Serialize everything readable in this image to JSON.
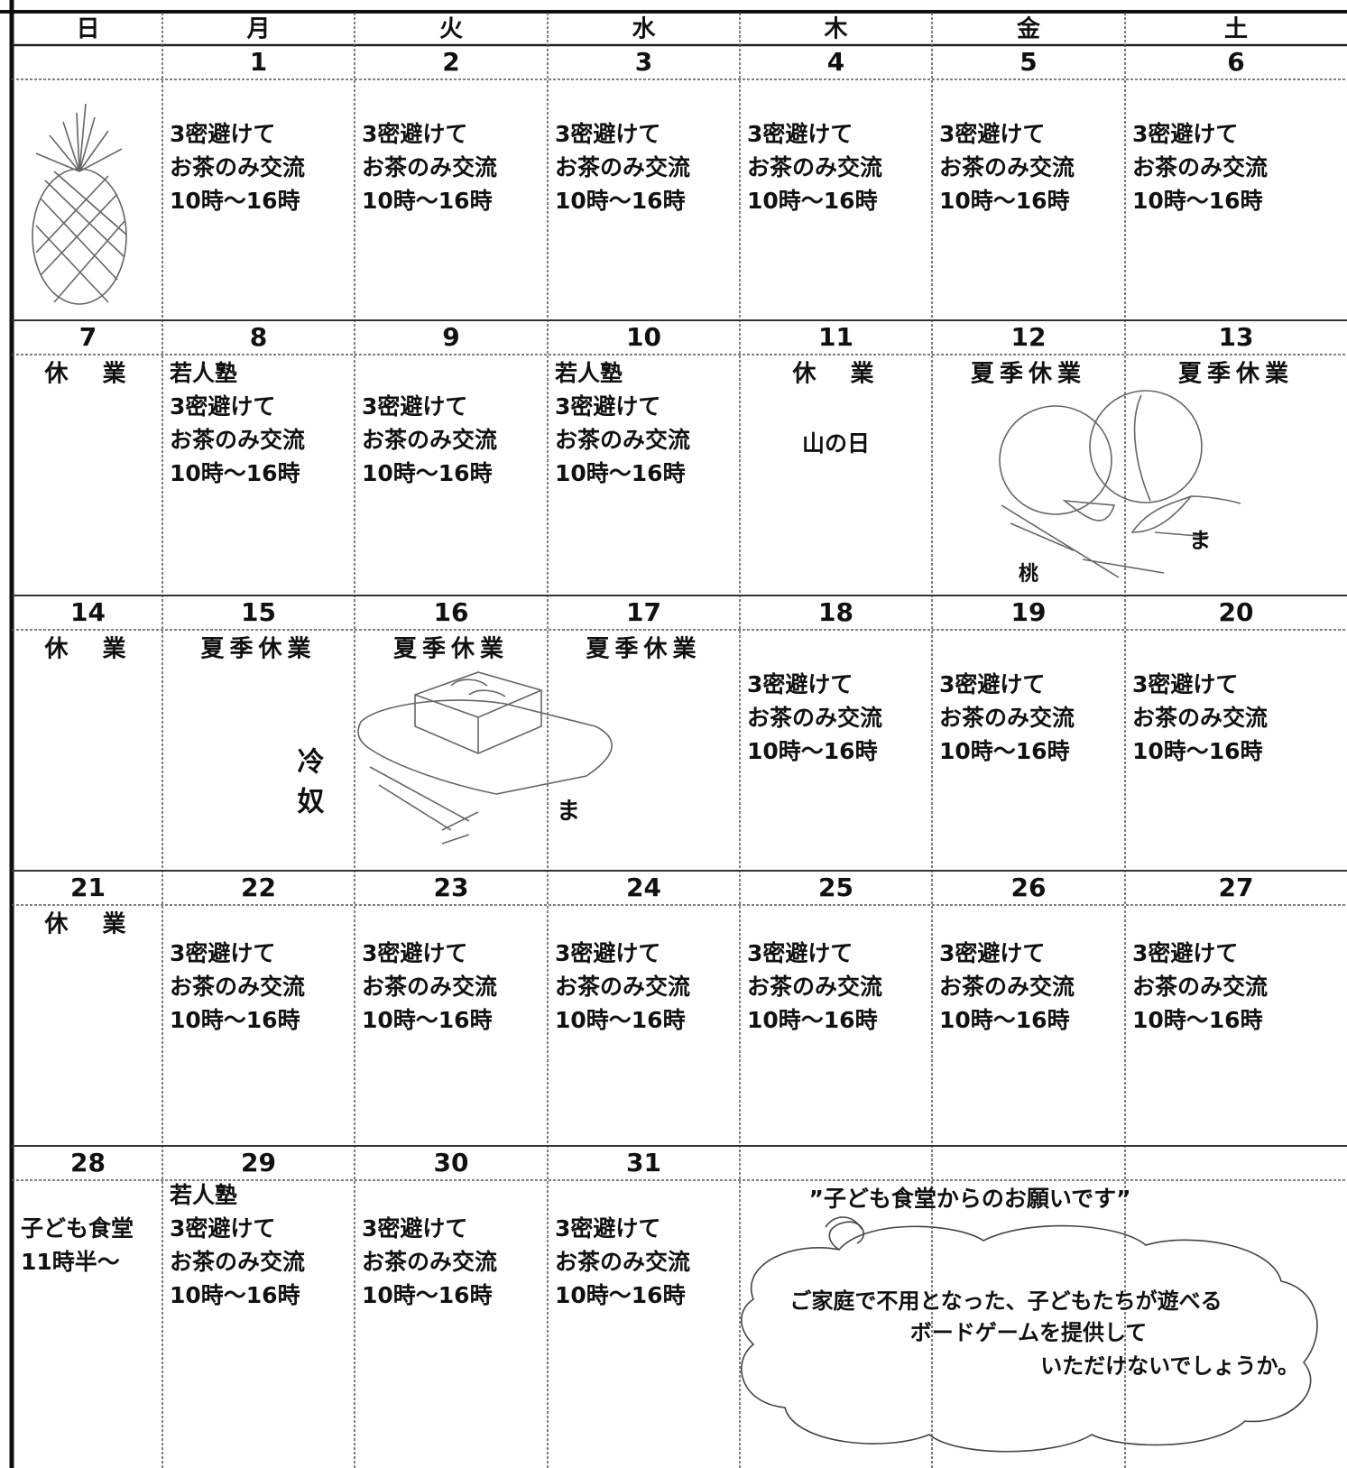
{
  "calendar": {
    "weekdays": [
      "日",
      "月",
      "火",
      "水",
      "木",
      "金",
      "土"
    ],
    "weeks": [
      {
        "days": [
          null,
          {
            "date": 1,
            "lines": [
              "3密避けて",
              "お茶のみ交流",
              "10時～16時"
            ]
          },
          {
            "date": 2,
            "lines": [
              "3密避けて",
              "お茶のみ交流",
              "10時～16時"
            ]
          },
          {
            "date": 3,
            "lines": [
              "3密避けて",
              "お茶のみ交流",
              "10時～16時"
            ]
          },
          {
            "date": 4,
            "lines": [
              "3密避けて",
              "お茶のみ交流",
              "10時～16時"
            ]
          },
          {
            "date": 5,
            "lines": [
              "3密避けて",
              "お茶のみ交流",
              "10時～16時"
            ]
          },
          {
            "date": 6,
            "lines": [
              "3密避けて",
              "お茶のみ交流",
              "10時～16時"
            ]
          }
        ]
      },
      {
        "days": [
          {
            "date": 7,
            "heading": "休　業"
          },
          {
            "date": 8,
            "lines": [
              "若人塾",
              "3密避けて",
              "お茶のみ交流",
              "10時～16時"
            ]
          },
          {
            "date": 9,
            "lines": [
              "3密避けて",
              "お茶のみ交流",
              "10時～16時"
            ]
          },
          {
            "date": 10,
            "lines": [
              "若人塾",
              "3密避けて",
              "お茶のみ交流",
              "10時～16時"
            ]
          },
          {
            "date": 11,
            "heading": "休　業",
            "lines": [
              "山の日"
            ],
            "align": "center"
          },
          {
            "date": 12,
            "heading": "夏季休業"
          },
          {
            "date": 13,
            "heading": "夏季休業"
          }
        ]
      },
      {
        "days": [
          {
            "date": 14,
            "heading": "休　業"
          },
          {
            "date": 15,
            "heading": "夏季休業"
          },
          {
            "date": 16,
            "heading": "夏季休業"
          },
          {
            "date": 17,
            "heading": "夏季休業"
          },
          {
            "date": 18,
            "lines": [
              "3密避けて",
              "お茶のみ交流",
              "10時～16時"
            ]
          },
          {
            "date": 19,
            "lines": [
              "3密避けて",
              "お茶のみ交流",
              "10時～16時"
            ]
          },
          {
            "date": 20,
            "lines": [
              "3密避けて",
              "お茶のみ交流",
              "10時～16時"
            ]
          }
        ]
      },
      {
        "days": [
          {
            "date": 21,
            "heading": "休　業"
          },
          {
            "date": 22,
            "lines": [
              "3密避けて",
              "お茶のみ交流",
              "10時～16時"
            ]
          },
          {
            "date": 23,
            "lines": [
              "3密避けて",
              "お茶のみ交流",
              "10時～16時"
            ]
          },
          {
            "date": 24,
            "lines": [
              "3密避けて",
              "お茶のみ交流",
              "10時～16時"
            ]
          },
          {
            "date": 25,
            "lines": [
              "3密避けて",
              "お茶のみ交流",
              "10時～16時"
            ]
          },
          {
            "date": 26,
            "lines": [
              "3密避けて",
              "お茶のみ交流",
              "10時～16時"
            ]
          },
          {
            "date": 27,
            "lines": [
              "3密避けて",
              "お茶のみ交流",
              "10時～16時"
            ]
          }
        ]
      },
      {
        "days": [
          {
            "date": 28,
            "lines": [
              "子ども食堂",
              "11時半～"
            ]
          },
          {
            "date": 29,
            "lines": [
              "若人塾",
              "3密避けて",
              "お茶のみ交流",
              "10時～16時"
            ]
          },
          {
            "date": 30,
            "lines": [
              "3密避けて",
              "お茶のみ交流",
              "10時～16時"
            ]
          },
          {
            "date": 31,
            "lines": [
              "3密避けて",
              "お茶のみ交流",
              "10時～16時"
            ]
          },
          null,
          null,
          null
        ]
      }
    ]
  },
  "illustrations": {
    "peach": {
      "label": "桃",
      "sign": "ま"
    },
    "tofu": {
      "label": "冷奴",
      "sign": "ま"
    }
  },
  "notice": {
    "title": "”子ども食堂からのお願いです”",
    "lines": [
      "ご家庭で不用となった、子どもたちが遊べる",
      "ボードゲームを提供して",
      "いただけないでしょうか。"
    ]
  }
}
